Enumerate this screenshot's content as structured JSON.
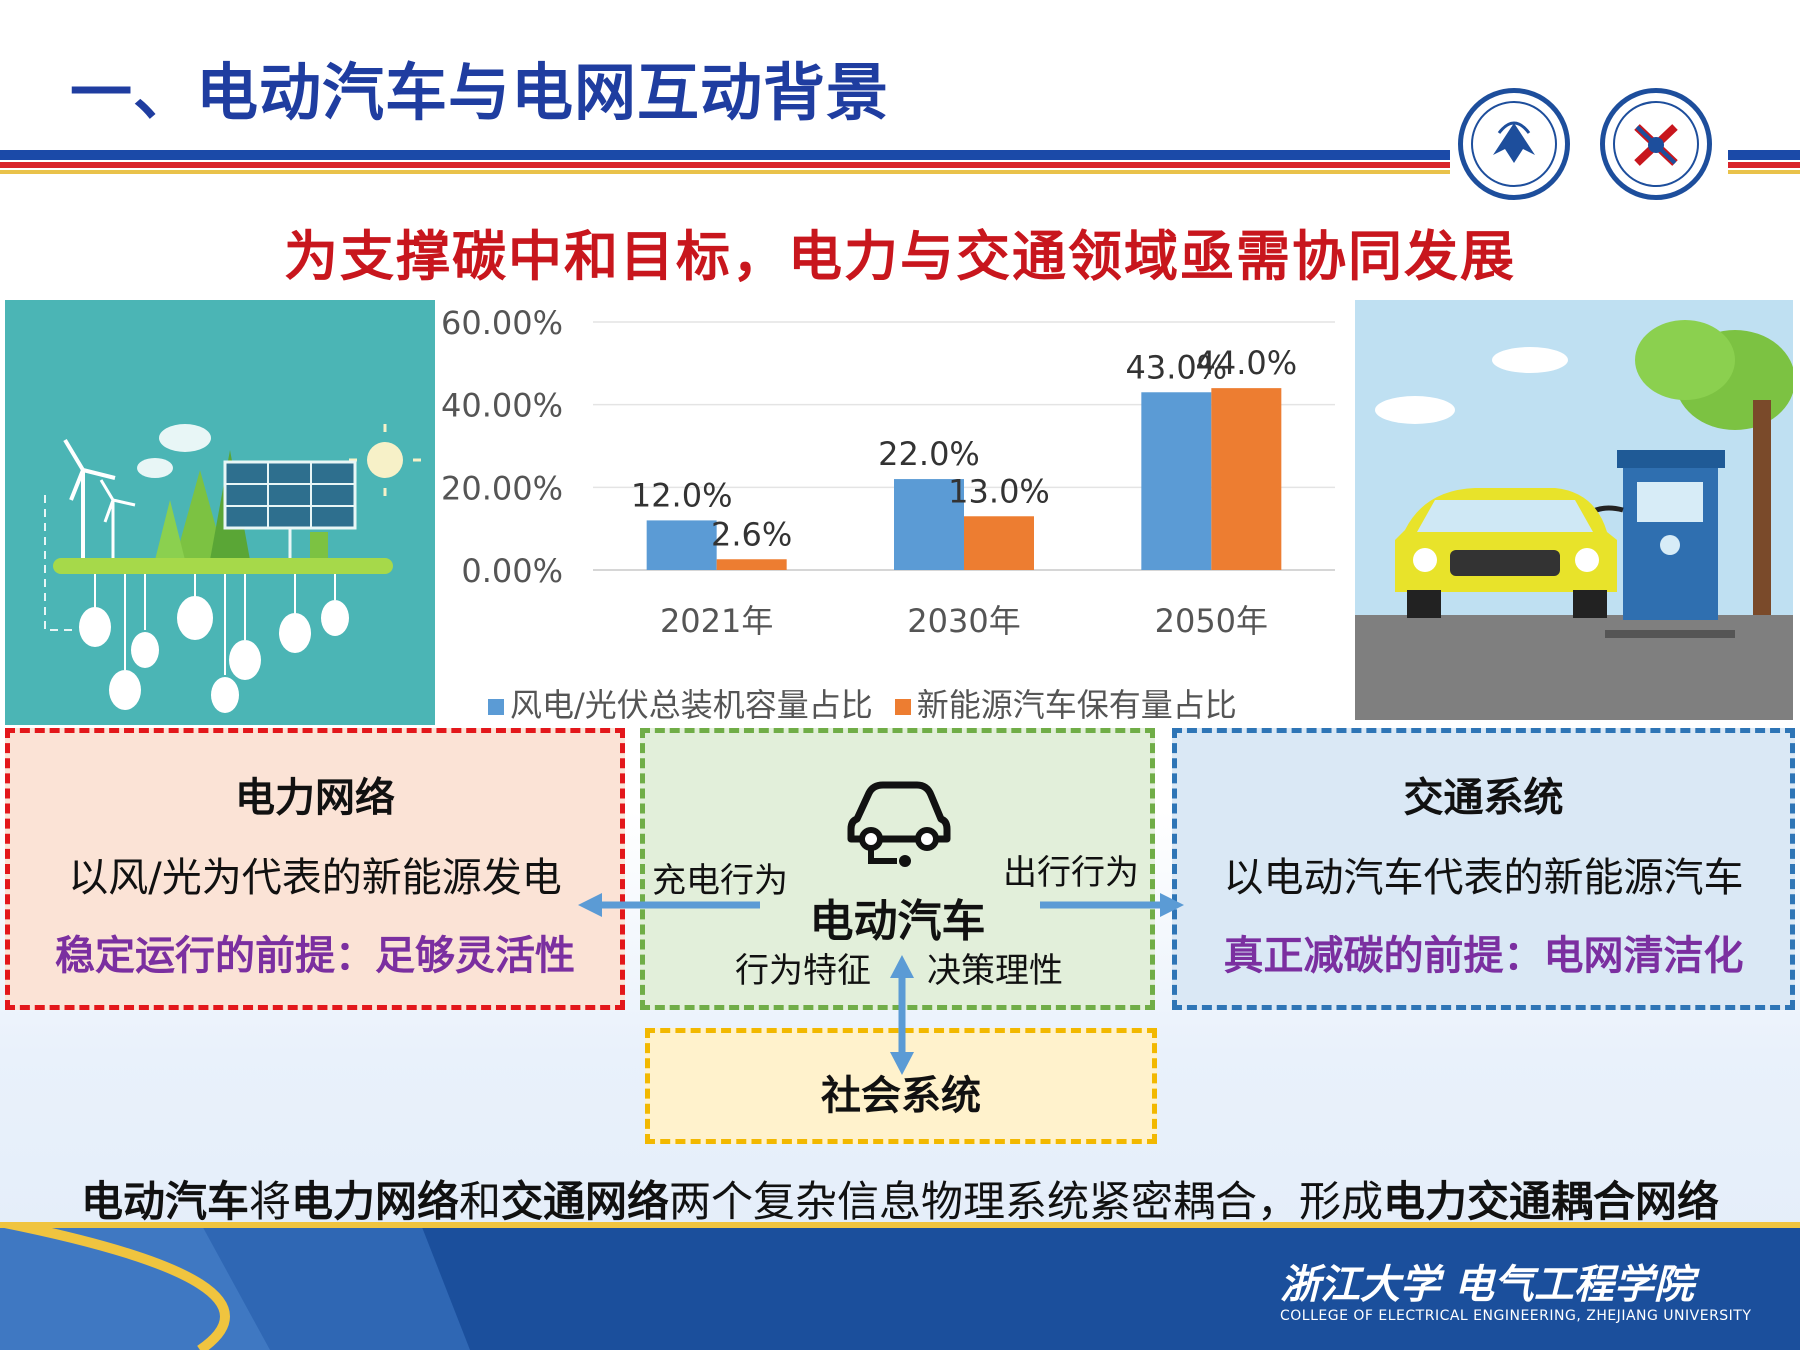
{
  "title": "一、电动汽车与电网互动背景",
  "subtitle": "为支撑碳中和目标，电力与交通领域亟需协同发展",
  "colors": {
    "title": "#1f3da0",
    "subtitle": "#c8161d",
    "series1": "#5b9bd5",
    "series2": "#ed7d31",
    "accent_purple": "#7b2fa0"
  },
  "chart_data": {
    "type": "bar",
    "categories": [
      "2021年",
      "2030年",
      "2050年"
    ],
    "series": [
      {
        "name": "风电/光伏总装机容量占比",
        "values": [
          12.0,
          22.0,
          43.0
        ],
        "labels": [
          "12.0%",
          "22.0%",
          "43.0%"
        ],
        "color": "#5b9bd5"
      },
      {
        "name": "新能源汽车保有量占比",
        "values": [
          2.6,
          13.0,
          44.0
        ],
        "labels": [
          "2.6%",
          "13.0%",
          "44.0%"
        ],
        "color": "#ed7d31"
      }
    ],
    "ylim": [
      0,
      60
    ],
    "yticks": [
      "0.00%",
      "20.00%",
      "40.00%",
      "60.00%"
    ],
    "ytick_values": [
      0,
      20,
      40,
      60
    ],
    "grid": true,
    "legend": "bottom"
  },
  "power_box": {
    "title": "电力网络",
    "line": "以风/光为代表的新能源发电",
    "key": "稳定运行的前提：足够灵活性"
  },
  "ev_box": {
    "title": "电动汽车",
    "left_label": "充电行为",
    "right_label": "出行行为",
    "bottom_left": "行为特征",
    "bottom_right": "决策理性"
  },
  "traffic_box": {
    "title": "交通系统",
    "line": "以电动汽车代表的新能源汽车",
    "key": "真正减碳的前提：电网清洁化"
  },
  "social_box": {
    "title": "社会系统"
  },
  "bottom": {
    "p1": "电动汽车",
    "p2": "将",
    "p3": "电力网络",
    "p4": "和",
    "p5": "交通网络",
    "p6": "两个复杂信息物理系统紧密耦合，形成",
    "p7": "电力交通耦合网络"
  },
  "footer": {
    "cn": "浙江大学 电气工程学院",
    "en": "COLLEGE OF ELECTRICAL ENGINEERING, ZHEJIANG UNIVERSITY"
  }
}
